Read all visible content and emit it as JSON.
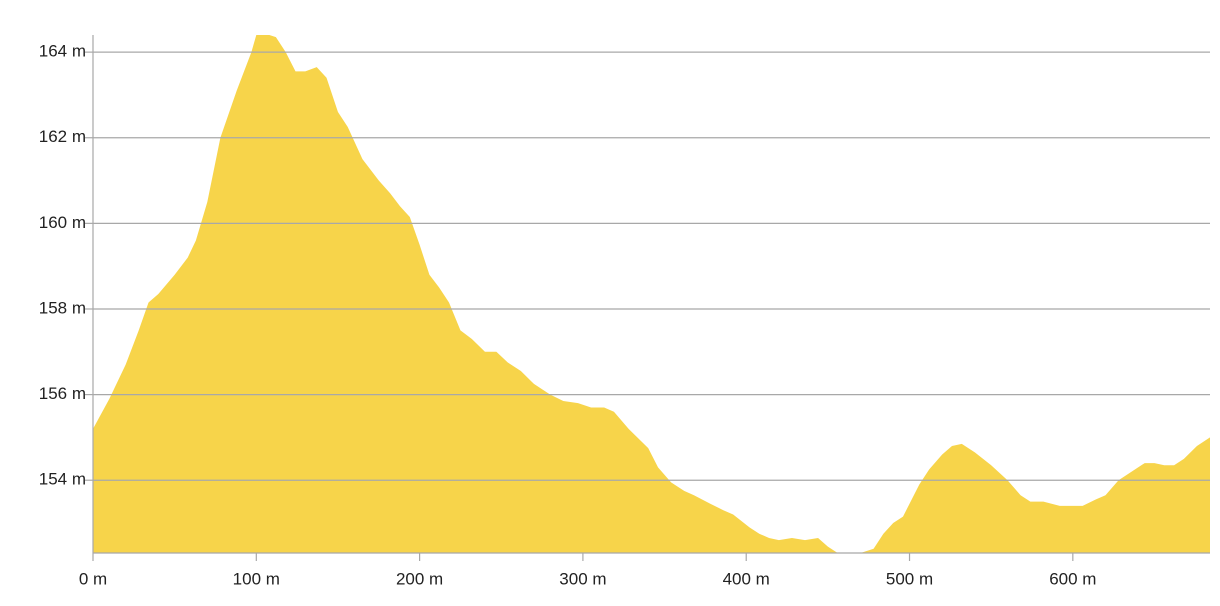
{
  "chart_data": {
    "type": "area",
    "x": [
      0,
      10,
      20,
      28,
      34,
      40,
      50,
      58,
      63,
      70,
      78,
      88,
      97,
      100,
      108,
      112,
      118,
      124,
      130,
      137,
      143,
      150,
      156,
      165,
      175,
      182,
      188,
      194,
      200,
      206,
      212,
      218,
      225,
      232,
      240,
      247,
      254,
      262,
      270,
      280,
      288,
      297,
      305,
      313,
      319,
      328,
      340,
      346,
      354,
      362,
      368,
      378,
      386,
      392,
      402,
      408,
      414,
      420,
      428,
      436,
      444,
      450,
      456,
      470,
      478,
      484,
      490,
      496,
      506,
      512,
      520,
      526,
      532,
      540,
      550,
      560,
      568,
      574,
      582,
      592,
      598,
      606,
      614,
      620,
      628,
      638,
      644,
      650,
      656,
      662,
      668,
      676,
      684
    ],
    "values": [
      155.2,
      155.9,
      156.7,
      157.5,
      158.15,
      158.35,
      158.8,
      159.2,
      159.6,
      160.5,
      162.0,
      163.1,
      164.0,
      164.4,
      164.4,
      164.35,
      164.0,
      163.55,
      163.55,
      163.65,
      163.4,
      162.6,
      162.25,
      161.5,
      161.0,
      160.7,
      160.4,
      160.15,
      159.5,
      158.8,
      158.5,
      158.15,
      157.5,
      157.3,
      157.0,
      157.0,
      156.75,
      156.55,
      156.25,
      156.0,
      155.85,
      155.8,
      155.7,
      155.7,
      155.6,
      155.2,
      154.75,
      154.3,
      153.95,
      153.75,
      153.65,
      153.45,
      153.3,
      153.2,
      152.9,
      152.75,
      152.65,
      152.6,
      152.65,
      152.6,
      152.65,
      152.45,
      152.3,
      152.3,
      152.4,
      152.75,
      153.0,
      153.15,
      153.9,
      154.25,
      154.6,
      154.8,
      154.85,
      154.65,
      154.35,
      154.0,
      153.65,
      153.5,
      153.5,
      153.4,
      153.4,
      153.4,
      153.55,
      153.65,
      154.0,
      154.25,
      154.4,
      154.4,
      154.35,
      154.35,
      154.5,
      154.8,
      155.0
    ],
    "color": "#f7d44a",
    "xlim": [
      0,
      684
    ],
    "ylim": [
      152.3,
      164.4
    ],
    "xticks": [
      {
        "value": 0,
        "label": "0 m"
      },
      {
        "value": 100,
        "label": "100 m"
      },
      {
        "value": 200,
        "label": "200 m"
      },
      {
        "value": 300,
        "label": "300 m"
      },
      {
        "value": 400,
        "label": "400 m"
      },
      {
        "value": 500,
        "label": "500 m"
      },
      {
        "value": 600,
        "label": "600 m"
      }
    ],
    "yticks": [
      {
        "value": 154,
        "label": "154 m"
      },
      {
        "value": 156,
        "label": "156 m"
      },
      {
        "value": 158,
        "label": "158 m"
      },
      {
        "value": 160,
        "label": "160 m"
      },
      {
        "value": 162,
        "label": "162 m"
      },
      {
        "value": 164,
        "label": "164 m"
      }
    ],
    "grid": true
  }
}
